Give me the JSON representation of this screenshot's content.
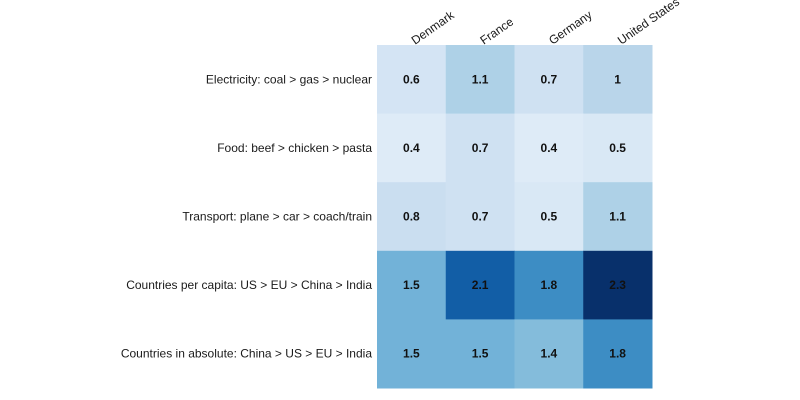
{
  "chart_data": {
    "type": "heatmap",
    "title": "",
    "xlabel": "",
    "ylabel": "",
    "columns": [
      "Denmark",
      "France",
      "Germany",
      "United States"
    ],
    "rows": [
      "Electricity: coal > gas > nuclear",
      "Food: beef > chicken > pasta",
      "Transport: plane > car > coach/train",
      "Countries per capita: US > EU > China > India",
      "Countries in absolute: China > US > EU > India"
    ],
    "values": [
      [
        0.6,
        1.1,
        0.7,
        1
      ],
      [
        0.4,
        0.7,
        0.4,
        0.5
      ],
      [
        0.8,
        0.7,
        0.5,
        1.1
      ],
      [
        1.5,
        2.1,
        1.8,
        2.3
      ],
      [
        1.5,
        1.5,
        1.4,
        1.8
      ]
    ],
    "color_scale": {
      "palette": "Blues",
      "low": "#deebf7",
      "high": "#08306b"
    },
    "legend": "none"
  }
}
